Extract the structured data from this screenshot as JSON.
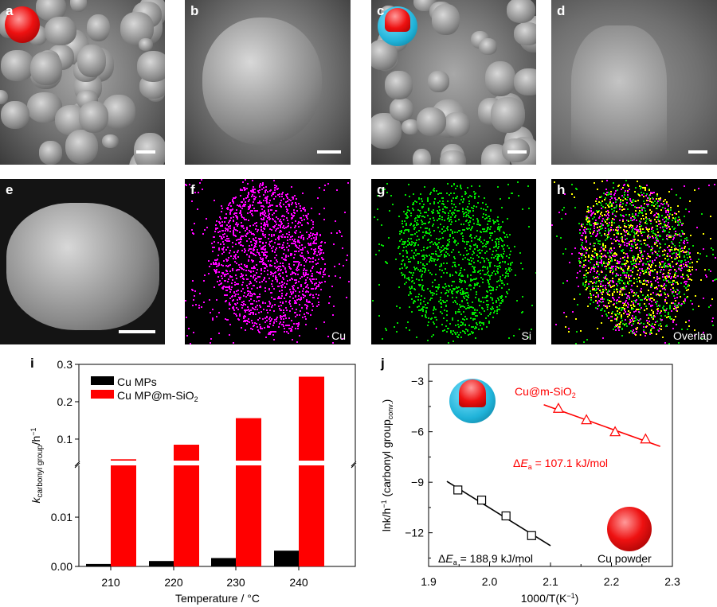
{
  "panels": {
    "a": {
      "label": "a"
    },
    "b": {
      "label": "b"
    },
    "c": {
      "label": "c"
    },
    "d": {
      "label": "d"
    },
    "e": {
      "label": "e"
    },
    "f": {
      "label": "f",
      "element": "Cu",
      "color": "#ff00ff"
    },
    "g": {
      "label": "g",
      "element": "Si",
      "color": "#00e000"
    },
    "h": {
      "label": "h",
      "element": "Overlap"
    }
  },
  "chart_data": [
    {
      "panel_label": "i",
      "type": "bar",
      "categories": [
        "210",
        "220",
        "230",
        "240"
      ],
      "xlabel": "Temperature / °C",
      "ylabel_main": "k",
      "ylabel_sub": "carbonyl group",
      "ylabel_unit": "/h",
      "ylabel_sup": "−1",
      "y_axis": "broken",
      "ylim_lower": [
        0,
        0.0205
      ],
      "ylim_upper": [
        0.036,
        0.3
      ],
      "yticks_lower": [
        "0.00",
        "0.01"
      ],
      "yticks_upper": [
        "0.1",
        "0.2",
        "0.3"
      ],
      "legend_placement": "top-left",
      "series": [
        {
          "name": "Cu MPs",
          "color": "#000000",
          "values": [
            0.0005,
            0.0011,
            0.0017,
            0.0032
          ]
        },
        {
          "name": "Cu MP@m-SiO",
          "name_sub": "2",
          "color": "#ff0000",
          "values": [
            0.046,
            0.085,
            0.156,
            0.267
          ]
        }
      ]
    },
    {
      "panel_label": "j",
      "type": "scatter",
      "xlabel": "1000/T(K",
      "xlabel_sup": "−1",
      "xlabel_end": ")",
      "ylabel": "lnk/h",
      "ylabel_sup": "−1",
      "ylabel_rest": " (carbonyl group",
      "ylabel_sub": "conv.",
      "ylabel_end": ")",
      "xlim": [
        1.9,
        2.3
      ],
      "ylim": [
        -14,
        -2
      ],
      "xticks": [
        "1.9",
        "2.0",
        "2.1",
        "2.2",
        "2.3"
      ],
      "yticks": [
        "-3",
        "-6",
        "-9",
        "-12"
      ],
      "series": [
        {
          "name": "Cu@m-SiO",
          "name_sub": "2",
          "color": "#ff0000",
          "marker": "triangle",
          "x": [
            2.113,
            2.159,
            2.206,
            2.256
          ],
          "y": [
            -4.61,
            -5.29,
            -6.0,
            -6.43
          ],
          "fit": {
            "x": [
              2.089,
              2.28
            ],
            "y": [
              -4.4,
              -6.87
            ]
          },
          "annotation": {
            "prefix": "ΔE",
            "sub": "a",
            "text": " = 107.1 kJ/mol"
          }
        },
        {
          "name": "Cu powder",
          "color": "#000000",
          "marker": "square",
          "x": [
            1.948,
            1.987,
            2.027,
            2.069
          ],
          "y": [
            -9.46,
            -10.06,
            -11.0,
            -12.17
          ],
          "fit": {
            "x": [
              1.93,
              2.1
            ],
            "y": [
              -8.95,
              -12.77
            ]
          },
          "annotation": {
            "prefix": "ΔE",
            "sub": "a",
            "text": " = 188.9 kJ/mol"
          }
        }
      ]
    }
  ]
}
